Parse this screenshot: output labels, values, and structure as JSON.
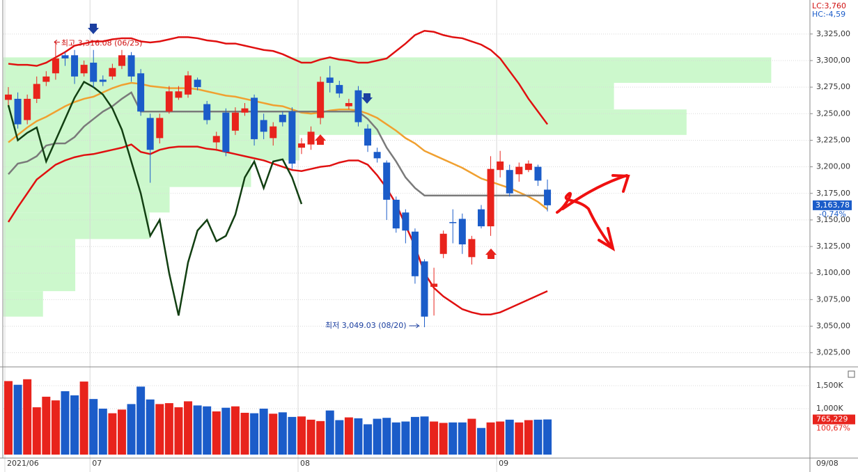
{
  "chart_data": {
    "type": "candlestick",
    "categories": [
      "2021/06",
      null,
      null,
      null,
      null,
      null,
      null,
      null,
      null,
      "07",
      null,
      null,
      null,
      null,
      null,
      null,
      null,
      null,
      null,
      null,
      null,
      null,
      null,
      null,
      null,
      null,
      null,
      null,
      null,
      null,
      null,
      "08",
      null,
      null,
      null,
      null,
      null,
      null,
      null,
      null,
      null,
      null,
      null,
      null,
      null,
      null,
      null,
      null,
      null,
      null,
      null,
      null,
      "09",
      null,
      null,
      null,
      null,
      null
    ],
    "open": [
      3263,
      3264,
      3244,
      3264,
      3280,
      3288,
      3305,
      3305,
      3288,
      3298,
      3282,
      3285,
      3295,
      3305,
      3288,
      3246,
      3227,
      3252,
      3265,
      3268,
      3282,
      3259,
      3223,
      3251,
      3234,
      3251,
      3265,
      3244,
      3227,
      3249,
      3252,
      3218,
      3221,
      3246,
      3284,
      3277,
      3257,
      3272,
      3236,
      3214,
      3204,
      3169,
      3157,
      3139,
      3111,
      3087,
      3118,
      3148,
      3151,
      3115,
      3160,
      3144,
      3197,
      3197,
      3193,
      3197,
      3200,
      3178.5
    ],
    "high": [
      3275,
      3270,
      3268,
      3285,
      3290,
      3316.08,
      3308,
      3310,
      3300,
      3310,
      3286,
      3297,
      3310,
      3308,
      3292,
      3250,
      3250,
      3276,
      3276,
      3290,
      3284,
      3262,
      3233,
      3255,
      3256,
      3260,
      3268,
      3250,
      3242,
      3252,
      3256,
      3227,
      3238,
      3285,
      3295,
      3281,
      3264,
      3276,
      3240,
      3218,
      3206,
      3172,
      3160,
      3142,
      3113,
      3105,
      3140,
      3160,
      3156,
      3135,
      3164,
      3210,
      3215,
      3202,
      3204,
      3206,
      3202,
      3188
    ],
    "low": [
      3258,
      3236,
      3240,
      3260,
      3276,
      3282,
      3295,
      3278,
      3285,
      3275,
      3276,
      3282,
      3292,
      3280,
      3248,
      3185,
      3222,
      3250,
      3263,
      3265,
      3272,
      3240,
      3215,
      3210,
      3230,
      3248,
      3220,
      3226,
      3220,
      3238,
      3198,
      3212,
      3216,
      3240,
      3270,
      3265,
      3254,
      3238,
      3214,
      3204,
      3150,
      3138,
      3128,
      3090,
      3049.03,
      3060,
      3114,
      3128,
      3118,
      3108,
      3142,
      3135,
      3190,
      3172,
      3186,
      3195,
      3182,
      3158
    ],
    "close": [
      3268,
      3240,
      3264,
      3278,
      3285,
      3302,
      3302,
      3285,
      3296,
      3280,
      3280,
      3293,
      3305,
      3285,
      3252,
      3216,
      3246,
      3271,
      3271,
      3286,
      3275,
      3244,
      3229,
      3214,
      3251,
      3255,
      3226,
      3233,
      3238,
      3242,
      3203,
      3222,
      3233,
      3280,
      3279,
      3269,
      3260,
      3242,
      3220,
      3208,
      3169,
      3142,
      3140,
      3097,
      3059,
      3090,
      3137,
      3147,
      3127,
      3132,
      3144,
      3198,
      3205,
      3175,
      3200,
      3203,
      3187,
      3163.78
    ],
    "up_color": "#e8231c",
    "down_color": "#1b5cc9",
    "ylim": [
      3013,
      3357
    ],
    "yticks": [
      {
        "value": 3025,
        "label": "3,025,00"
      },
      {
        "value": 3050,
        "label": "3,050,00"
      },
      {
        "value": 3075,
        "label": "3,075,00"
      },
      {
        "value": 3100,
        "label": "3,100,00"
      },
      {
        "value": 3125,
        "label": "3,125,00"
      },
      {
        "value": 3150,
        "label": "3,150,00"
      },
      {
        "value": 3175,
        "label": "3,175,00"
      },
      {
        "value": 3200,
        "label": "3,200,00"
      },
      {
        "value": 3225,
        "label": "3,225,00"
      },
      {
        "value": 3250,
        "label": "3,250,00"
      },
      {
        "value": 3275,
        "label": "3,275,00"
      },
      {
        "value": 3300,
        "label": "3,300,00"
      },
      {
        "value": 3325,
        "label": "3,325,00"
      }
    ],
    "grid": true,
    "overlays": [
      {
        "color": "#e01010",
        "values": [
          3297,
          3296,
          3296,
          3295,
          3298,
          3303,
          3308,
          3314,
          3316,
          3318,
          3318,
          3320,
          3321,
          3321,
          3318,
          3317,
          3318,
          3320,
          3322,
          3322,
          3321,
          3319,
          3318,
          3316,
          3316,
          3314,
          3312,
          3310,
          3309,
          3306,
          3302,
          3298,
          3298,
          3301,
          3303,
          3301,
          3300,
          3298,
          3298,
          3300,
          3302,
          3309,
          3316,
          3324,
          3328,
          3327,
          3324,
          3322,
          3321,
          3318,
          3315,
          3310,
          3302,
          3290,
          3278,
          3264,
          3252,
          3240
        ]
      },
      {
        "color": "#e01010",
        "values": [
          3148,
          3162,
          3175,
          3188,
          3195,
          3202,
          3206,
          3209,
          3211,
          3212,
          3214,
          3216,
          3218,
          3221,
          3214,
          3212,
          3216,
          3218,
          3219,
          3219,
          3219,
          3217,
          3216,
          3214,
          3212,
          3210,
          3208,
          3206,
          3203,
          3200,
          3197,
          3196,
          3198,
          3200,
          3201,
          3204,
          3206,
          3206,
          3202,
          3192,
          3180,
          3165,
          3145,
          3125,
          3100,
          3086,
          3078,
          3072,
          3066,
          3063,
          3061,
          3061,
          3063,
          3067,
          3071,
          3075,
          3079,
          3083
        ]
      },
      {
        "color": "#f0a030",
        "values": [
          3223,
          3230,
          3237,
          3243,
          3247,
          3252,
          3257,
          3261,
          3264,
          3266,
          3270,
          3274,
          3277,
          3279,
          3278,
          3276,
          3275,
          3274,
          3274,
          3274,
          3273,
          3271,
          3269,
          3267,
          3266,
          3264,
          3262,
          3260,
          3258,
          3257,
          3254,
          3251,
          3250,
          3251,
          3253,
          3254,
          3254,
          3253,
          3250,
          3246,
          3240,
          3234,
          3227,
          3222,
          3215,
          3211,
          3207,
          3203,
          3199,
          3194,
          3189,
          3186,
          3183,
          3180,
          3176,
          3172,
          3167,
          3160
        ]
      },
      {
        "color": "#7a7a7a",
        "values": [
          3193,
          3203,
          3205,
          3210,
          3220,
          3222,
          3222,
          3228,
          3238,
          3245,
          3252,
          3257,
          3264,
          3270,
          3252,
          3252,
          3252,
          3252,
          3252,
          3252,
          3252,
          3252,
          3252,
          3252,
          3252,
          3252,
          3252,
          3252,
          3252,
          3252,
          3252,
          3252,
          3252,
          3252,
          3252,
          3252,
          3252,
          3252,
          3245,
          3235,
          3218,
          3205,
          3190,
          3180,
          3173,
          3173,
          3173,
          3173,
          3173,
          3173,
          3173,
          3173,
          3173,
          3173,
          3173,
          3173,
          3173,
          3173
        ]
      },
      {
        "color": "#123f12",
        "values": [
          3258,
          3225,
          3232,
          3237,
          3205,
          3225,
          3245,
          3265,
          3280,
          3275,
          3268,
          3255,
          3235,
          3205,
          3175,
          3135,
          3150,
          3100,
          3060,
          3110,
          3140,
          3150,
          3130,
          3135,
          3155,
          3190,
          3205,
          3180,
          3205,
          3207,
          3190,
          3165,
          null,
          null,
          null,
          null,
          null,
          null,
          null,
          null,
          null,
          null,
          null,
          null,
          null,
          null,
          null,
          null,
          null,
          null,
          null,
          null,
          null,
          null,
          null,
          null,
          null,
          null
        ]
      }
    ],
    "price_volume_profile": {
      "color": "#ccf8cc",
      "bins": [
        3059,
        3083,
        3108,
        3132,
        3157,
        3181,
        3206,
        3230,
        3254,
        3279,
        3303
      ],
      "values": [
        4.9,
        8.9,
        8.9,
        18.1,
        20.6,
        30.7,
        36.7,
        84.7,
        75.7,
        95.2
      ]
    },
    "high_annotation": "최고 3,316.08 (06/25)",
    "low_annotation": "최저 3,049.03 (08/20)",
    "lc_label": "LC:3,760",
    "hc_label": "HC:-4,59",
    "last_price": {
      "value": 3163.78,
      "label": "3,163,78"
    },
    "change_label": "-0,74%",
    "volume": {
      "values": [
        1600000,
        1520000,
        1640000,
        1030000,
        1260000,
        1180000,
        1380000,
        1290000,
        1590000,
        1210000,
        1000000,
        900000,
        980000,
        1100000,
        1480000,
        1200000,
        1100000,
        1120000,
        1030000,
        1160000,
        1070000,
        1050000,
        940000,
        1020000,
        1050000,
        910000,
        900000,
        1000000,
        890000,
        920000,
        820000,
        830000,
        760000,
        730000,
        960000,
        750000,
        810000,
        790000,
        660000,
        780000,
        800000,
        700000,
        720000,
        820000,
        830000,
        720000,
        690000,
        700000,
        700000,
        780000,
        580000,
        700000,
        720000,
        760000,
        700000,
        750000,
        760000,
        765229
      ],
      "ylim": [
        0,
        1864000
      ],
      "yticks": [
        {
          "value": 1000000,
          "label": "1,000K"
        },
        {
          "value": 1500000,
          "label": "1,500K"
        }
      ],
      "last_label": "765,229",
      "ratio_label": "100,67%"
    },
    "end_date": "09/08"
  }
}
